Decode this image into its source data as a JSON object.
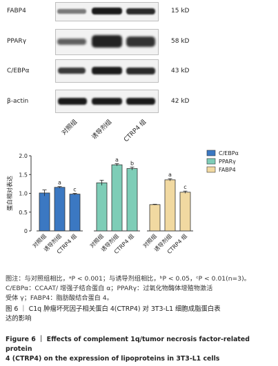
{
  "blot": {
    "proteins": [
      {
        "name": "FABP4",
        "kd": "15 kD"
      },
      {
        "name": "PPARγ",
        "kd": "58 kD"
      },
      {
        "name": "C/EBPα",
        "kd": "43 kD"
      },
      {
        "name": "β-actin",
        "kd": "42 kD"
      }
    ],
    "lanes": [
      "对照组",
      "诱导剂组",
      "CTRP4 组"
    ]
  },
  "chart_data": {
    "type": "bar",
    "ylabel": "蛋白相对表达",
    "ylim": [
      0,
      2.0
    ],
    "yticks": [
      "0",
      "0.5",
      "1.0",
      "1.5",
      "2.0"
    ],
    "legend": [
      "C/EBPα",
      "PPARγ",
      "FABP4"
    ],
    "legend_position": "top-right",
    "colors": {
      "C/EBPα": "#3b78c2",
      "PPARγ": "#7ecdb7",
      "FABP4": "#f1d9a1"
    },
    "categories": [
      "对照组",
      "诱导剂组",
      "CTRP4 组"
    ],
    "series": [
      {
        "name": "C/EBPα",
        "values": [
          1.01,
          1.16,
          0.98
        ],
        "errors": [
          0.08,
          0.02,
          0.02
        ],
        "marks": [
          "",
          "a",
          "c"
        ]
      },
      {
        "name": "PPARγ",
        "values": [
          1.28,
          1.76,
          1.66
        ],
        "errors": [
          0.07,
          0.03,
          0.04
        ],
        "marks": [
          "",
          "a",
          "b"
        ]
      },
      {
        "name": "FABP4",
        "values": [
          0.7,
          1.36,
          1.03
        ],
        "errors": [
          0.01,
          0.03,
          0.03
        ],
        "marks": [
          "",
          "a",
          "c"
        ]
      }
    ]
  },
  "caption": {
    "note_line1": "图注：与对照组相比，ᵃP < 0.001；与诱导剂组相比，ᵇP < 0.05，ᶜP < 0.01(n=3)。",
    "note_line2": "C/EBPα：CCAAT/ 增强子结合蛋白 α；PPARγ：过氧化物酶体增殖物激活",
    "note_line3": "受体 γ；FABP4：脂肪酸结合蛋白 4。",
    "title_cn_line1": "图 6 ｜ C1q 肿瘤坏死因子相关蛋白 4(CTRP4) 对 3T3-L1 细胞成脂蛋白表",
    "title_cn_line2": "达的影响",
    "title_en_line1": "Figure 6 ｜ Effects of complement 1q/tumor necrosis factor-related protein",
    "title_en_line2": "4 (CTRP4) on the expression of lipoproteins in 3T3-L1 cells"
  }
}
